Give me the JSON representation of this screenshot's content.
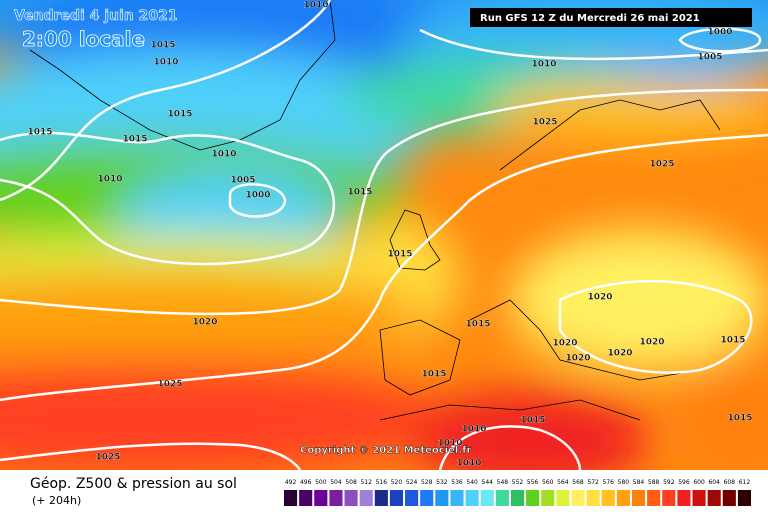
{
  "header": {
    "date": "Vendredi 4 juin 2021",
    "time": "2:00 locale",
    "run": "Run GFS 12 Z du Mercredi 26 mai 2021"
  },
  "isobar_labels": [
    "1010",
    "1015",
    "1010",
    "1015",
    "1015",
    "1015",
    "1010",
    "1010",
    "1005",
    "1000",
    "1015",
    "1015",
    "1020",
    "1015",
    "1025",
    "1015",
    "1025",
    "1010",
    "1010",
    "1010",
    "1015",
    "1025",
    "1025",
    "1010",
    "1000",
    "1005",
    "1020",
    "1020",
    "1020",
    "1020",
    "1020",
    "1015",
    "1015"
  ],
  "copyright": "Copyright © 2021 Meteociel.fr",
  "footer": {
    "title": "Géop. Z500 & pression au sol",
    "lead": "(+ 204h)"
  },
  "scale": {
    "values": [
      492,
      496,
      500,
      504,
      508,
      512,
      516,
      520,
      524,
      528,
      532,
      536,
      540,
      544,
      548,
      552,
      556,
      560,
      564,
      568,
      572,
      576,
      580,
      584,
      588,
      592,
      596,
      600,
      604,
      608,
      612
    ],
    "colors": [
      "#2b0033",
      "#4b0066",
      "#6a0099",
      "#7a1fa2",
      "#8c4fc0",
      "#9e80d8",
      "#1b2a8f",
      "#1e3fbf",
      "#1e5ae0",
      "#1e7af5",
      "#2196f3",
      "#38b4f8",
      "#4fd0fa",
      "#6ee8f0",
      "#40d8a0",
      "#30c060",
      "#60d020",
      "#a0e020",
      "#e0f040",
      "#fff060",
      "#ffe040",
      "#ffc020",
      "#ffa010",
      "#ff8010",
      "#ff6010",
      "#ff4020",
      "#f02020",
      "#d01010",
      "#a00808",
      "#700000",
      "#300000"
    ]
  }
}
